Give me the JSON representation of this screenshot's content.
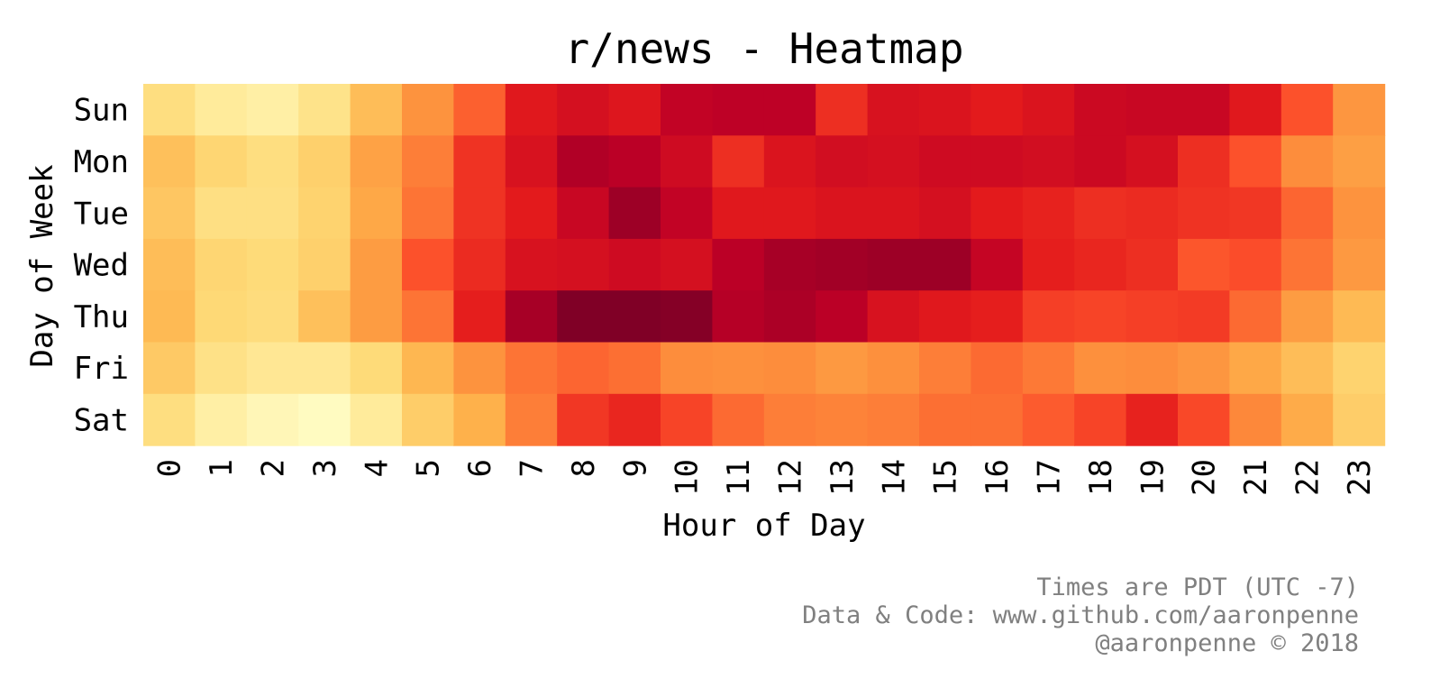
{
  "chart_data": {
    "type": "heatmap",
    "title": "r/news - Heatmap",
    "xlabel": "Hour of Day",
    "ylabel": "Day of Week",
    "x_categories": [
      "0",
      "1",
      "2",
      "3",
      "4",
      "5",
      "6",
      "7",
      "8",
      "9",
      "10",
      "11",
      "12",
      "13",
      "14",
      "15",
      "16",
      "17",
      "18",
      "19",
      "20",
      "21",
      "22",
      "23"
    ],
    "y_categories": [
      "Sun",
      "Mon",
      "Tue",
      "Wed",
      "Thu",
      "Fri",
      "Sat"
    ],
    "colormap": "YlOrRd",
    "colorbar": false,
    "values": [
      [
        0.22,
        0.14,
        0.11,
        0.19,
        0.34,
        0.48,
        0.59,
        0.76,
        0.8,
        0.77,
        0.86,
        0.87,
        0.87,
        0.7,
        0.79,
        0.78,
        0.75,
        0.78,
        0.83,
        0.84,
        0.84,
        0.76,
        0.62,
        0.47
      ],
      [
        0.33,
        0.26,
        0.22,
        0.28,
        0.43,
        0.53,
        0.69,
        0.79,
        0.9,
        0.88,
        0.82,
        0.7,
        0.78,
        0.81,
        0.8,
        0.82,
        0.82,
        0.81,
        0.83,
        0.8,
        0.7,
        0.62,
        0.5,
        0.44
      ],
      [
        0.31,
        0.21,
        0.21,
        0.27,
        0.41,
        0.55,
        0.69,
        0.75,
        0.84,
        0.94,
        0.86,
        0.76,
        0.76,
        0.78,
        0.78,
        0.8,
        0.75,
        0.73,
        0.7,
        0.71,
        0.69,
        0.68,
        0.58,
        0.48
      ],
      [
        0.34,
        0.26,
        0.24,
        0.28,
        0.45,
        0.62,
        0.71,
        0.79,
        0.8,
        0.82,
        0.8,
        0.88,
        0.92,
        0.93,
        0.94,
        0.94,
        0.85,
        0.74,
        0.72,
        0.7,
        0.61,
        0.63,
        0.55,
        0.46
      ],
      [
        0.35,
        0.25,
        0.23,
        0.33,
        0.45,
        0.55,
        0.74,
        0.92,
        1.0,
        1.0,
        0.99,
        0.89,
        0.91,
        0.88,
        0.79,
        0.76,
        0.74,
        0.66,
        0.65,
        0.66,
        0.67,
        0.57,
        0.45,
        0.35
      ],
      [
        0.3,
        0.2,
        0.16,
        0.16,
        0.24,
        0.36,
        0.48,
        0.55,
        0.58,
        0.56,
        0.5,
        0.49,
        0.5,
        0.46,
        0.49,
        0.53,
        0.57,
        0.54,
        0.49,
        0.5,
        0.47,
        0.41,
        0.34,
        0.27
      ],
      [
        0.22,
        0.11,
        0.06,
        0.03,
        0.14,
        0.29,
        0.38,
        0.53,
        0.68,
        0.72,
        0.65,
        0.57,
        0.53,
        0.52,
        0.53,
        0.56,
        0.56,
        0.6,
        0.65,
        0.73,
        0.64,
        0.51,
        0.4,
        0.29
      ]
    ]
  },
  "footer": {
    "line1": "Times are PDT (UTC -7)",
    "line2": "Data & Code: www.github.com/aaronpenne",
    "line3": "@aaronpenne © 2018"
  }
}
